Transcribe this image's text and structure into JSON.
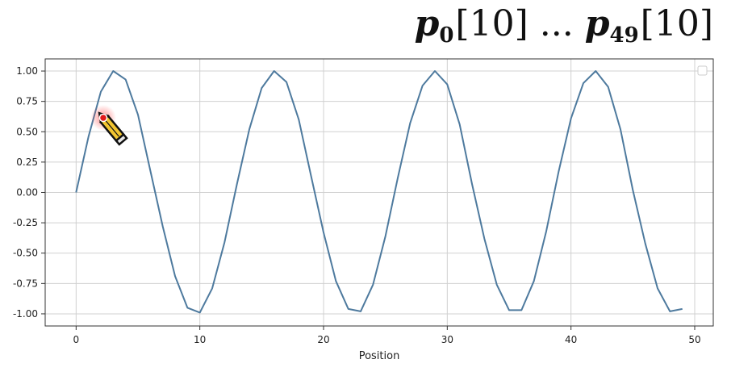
{
  "title": {
    "a_symbol": "p",
    "a_sub": "0",
    "a_index": "[10]",
    "ellipsis": "...",
    "b_symbol": "p",
    "b_sub": "49",
    "b_index": "[10]"
  },
  "chart_data": {
    "type": "line",
    "title": "",
    "xlabel": "Position",
    "ylabel": "",
    "xlim": [
      -2.5,
      51.5
    ],
    "ylim": [
      -1.1,
      1.1
    ],
    "xticks": [
      0,
      10,
      20,
      30,
      40,
      50
    ],
    "yticks": [
      -1.0,
      -0.75,
      -0.5,
      -0.25,
      0.0,
      0.25,
      0.5,
      0.75,
      1.0
    ],
    "grid": true,
    "legend": "top-right, empty",
    "series": [
      {
        "color": "#4e7a9e",
        "x": [
          0,
          1,
          2,
          3,
          4,
          5,
          6,
          7,
          8,
          9,
          10,
          11,
          12,
          13,
          14,
          15,
          16,
          17,
          18,
          19,
          20,
          21,
          22,
          23,
          24,
          25,
          26,
          27,
          28,
          29,
          30,
          31,
          32,
          33,
          34,
          35,
          36,
          37,
          38,
          39,
          40,
          41,
          42,
          43,
          44,
          45,
          46,
          47,
          48,
          49
        ],
        "y": [
          0.0,
          0.46,
          0.83,
          1.0,
          0.93,
          0.64,
          0.18,
          -0.28,
          -0.69,
          -0.95,
          -0.99,
          -0.79,
          -0.41,
          0.07,
          0.52,
          0.86,
          1.0,
          0.91,
          0.6,
          0.13,
          -0.33,
          -0.73,
          -0.96,
          -0.98,
          -0.76,
          -0.36,
          0.12,
          0.57,
          0.88,
          1.0,
          0.89,
          0.56,
          0.07,
          -0.38,
          -0.76,
          -0.97,
          -0.97,
          -0.73,
          -0.32,
          0.17,
          0.61,
          0.9,
          1.0,
          0.87,
          0.52,
          0.02,
          -0.42,
          -0.79,
          -0.98,
          -0.96
        ]
      }
    ]
  },
  "cursor": {
    "icon": "pencil-cursor-icon",
    "highlight_color": "#e02020"
  }
}
